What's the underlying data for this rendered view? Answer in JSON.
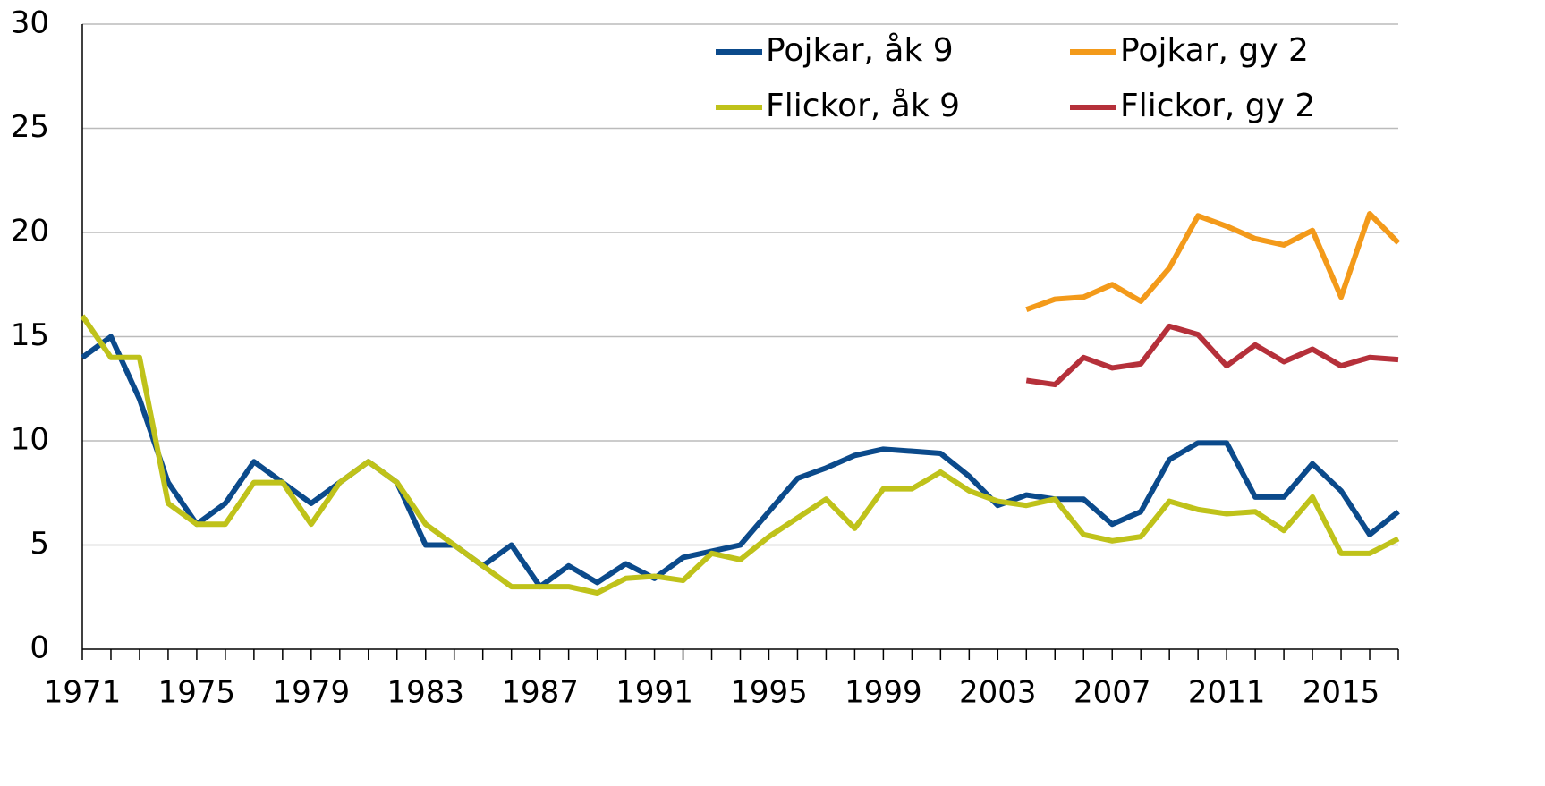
{
  "chart_data": {
    "type": "line",
    "x": [
      1971,
      1972,
      1973,
      1974,
      1975,
      1976,
      1977,
      1978,
      1979,
      1980,
      1981,
      1982,
      1983,
      1984,
      1985,
      1986,
      1987,
      1988,
      1989,
      1990,
      1991,
      1992,
      1993,
      1994,
      1995,
      1996,
      1997,
      1998,
      1999,
      2000,
      2001,
      2002,
      2003,
      2004,
      2005,
      2006,
      2007,
      2008,
      2009,
      2010,
      2011,
      2012,
      2013,
      2014,
      2015,
      2016,
      2017
    ],
    "series": [
      {
        "name": "Pojkar, åk 9",
        "color": "#0b4a8b",
        "values": [
          14,
          15,
          12,
          8,
          6,
          7,
          9,
          8,
          7,
          8,
          9,
          8,
          5,
          5,
          4,
          5,
          3,
          4,
          3.2,
          4.1,
          3.4,
          4.4,
          4.7,
          5,
          6.6,
          8.2,
          8.7,
          9.3,
          9.6,
          9.5,
          9.4,
          8.3,
          6.9,
          7.4,
          7.2,
          7.2,
          6,
          6.6,
          9.1,
          9.9,
          9.9,
          7.3,
          7.3,
          8.9,
          7.6,
          5.5,
          6.6
        ]
      },
      {
        "name": "Pojkar, gy 2",
        "color": "#f39a1a",
        "values": [
          null,
          null,
          null,
          null,
          null,
          null,
          null,
          null,
          null,
          null,
          null,
          null,
          null,
          null,
          null,
          null,
          null,
          null,
          null,
          null,
          null,
          null,
          null,
          null,
          null,
          null,
          null,
          null,
          null,
          null,
          null,
          null,
          null,
          16.3,
          16.8,
          16.9,
          17.5,
          16.7,
          18.3,
          20.8,
          20.3,
          19.7,
          19.4,
          20.1,
          16.9,
          20.9,
          19.5
        ]
      },
      {
        "name": "Flickor, åk 9",
        "color": "#bfc21a",
        "values": [
          16,
          14,
          14,
          7,
          6,
          6,
          8,
          8,
          6,
          8,
          9,
          8,
          6,
          5,
          4,
          3,
          3,
          3,
          2.7,
          3.4,
          3.5,
          3.3,
          4.6,
          4.3,
          5.4,
          6.3,
          7.2,
          5.8,
          7.7,
          7.7,
          8.5,
          7.6,
          7.1,
          6.9,
          7.2,
          5.5,
          5.2,
          5.4,
          7.1,
          6.7,
          6.5,
          6.6,
          5.7,
          7.3,
          4.6,
          4.6,
          5.3
        ]
      },
      {
        "name": "Flickor, gy 2",
        "color": "#b5303a",
        "values": [
          null,
          null,
          null,
          null,
          null,
          null,
          null,
          null,
          null,
          null,
          null,
          null,
          null,
          null,
          null,
          null,
          null,
          null,
          null,
          null,
          null,
          null,
          null,
          null,
          null,
          null,
          null,
          null,
          null,
          null,
          null,
          null,
          null,
          12.9,
          12.7,
          14,
          13.5,
          13.7,
          15.5,
          15.1,
          13.6,
          14.6,
          13.8,
          14.4,
          13.6,
          14,
          13.9
        ]
      }
    ],
    "xlim": [
      1971,
      2017
    ],
    "xticks": [
      1971,
      1975,
      1979,
      1983,
      1987,
      1991,
      1995,
      1999,
      2003,
      2007,
      2011,
      2015
    ],
    "ylim": [
      0,
      30
    ],
    "yticks": [
      0,
      5,
      10,
      15,
      20,
      25,
      30
    ],
    "grid": true,
    "legend": "top right"
  }
}
